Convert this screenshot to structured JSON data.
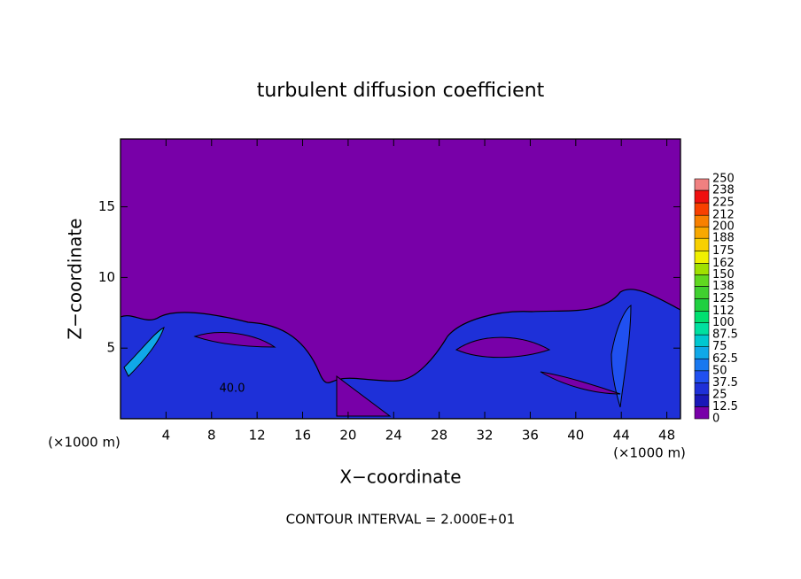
{
  "chart_data": {
    "type": "contour",
    "title": "turbulent diffusion coefficient",
    "x_label": "X−coordinate",
    "y_label": "Z−coordinate",
    "x_unit": "(×1000 m)",
    "y_unit": "(×1000 m)",
    "footer": "CONTOUR INTERVAL = 2.000E+01",
    "contour_labels": [
      "40.0"
    ],
    "xlim": [
      0,
      49.2
    ],
    "ylim": [
      0,
      19.8
    ],
    "xticks": [
      4,
      8,
      12,
      16,
      20,
      24,
      28,
      32,
      36,
      40,
      44,
      48
    ],
    "yticks": [
      5,
      10,
      15
    ],
    "background": "#7800a8",
    "colorbar": {
      "ticks": [
        0,
        12.5,
        25,
        37.5,
        50,
        62.5,
        75,
        87.5,
        100,
        112,
        125,
        138,
        150,
        162,
        175,
        188,
        200,
        212,
        225,
        238,
        250
      ],
      "colors": [
        "#7800a8",
        "#1a18b8",
        "#1e30d8",
        "#2050f0",
        "#1878f0",
        "#10a8e8",
        "#00c8d0",
        "#00e0a0",
        "#00e070",
        "#20d040",
        "#40d030",
        "#60d820",
        "#a0e000",
        "#f0f000",
        "#f8d000",
        "#f8a800",
        "#f88000",
        "#f84000",
        "#f01010",
        "#f08080"
      ]
    }
  }
}
